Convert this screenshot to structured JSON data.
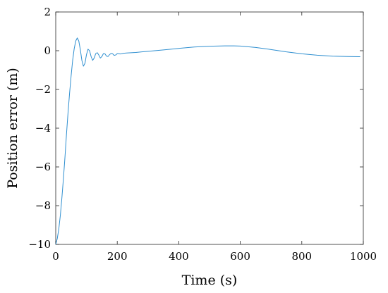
{
  "chart_data": {
    "type": "line",
    "title": "",
    "xlabel": "Time (s)",
    "ylabel": "Position error (m)",
    "xlim": [
      0,
      1000
    ],
    "ylim": [
      -10,
      2
    ],
    "xticks": [
      0,
      200,
      400,
      600,
      800,
      1000
    ],
    "yticks": [
      -10,
      -8,
      -6,
      -4,
      -2,
      0,
      2
    ],
    "grid": false,
    "series_color": "#2f8fd0",
    "series": [
      {
        "x": [
          0,
          5,
          10,
          15,
          20,
          25,
          30,
          35,
          40,
          45,
          50,
          55,
          60,
          65,
          70,
          75,
          80,
          85,
          90,
          95,
          100,
          105,
          110,
          115,
          120,
          125,
          130,
          135,
          140,
          145,
          150,
          155,
          160,
          165,
          170,
          175,
          180,
          185,
          190,
          195,
          200,
          210,
          220,
          230,
          240,
          250,
          260,
          280,
          300,
          350,
          400,
          450,
          500,
          550,
          580,
          600,
          650,
          700,
          750,
          800,
          850,
          900,
          950,
          990
        ],
        "y": [
          -10,
          -9.7,
          -9.2,
          -8.5,
          -7.6,
          -6.6,
          -5.5,
          -4.3,
          -3.2,
          -2.2,
          -1.3,
          -0.5,
          0.1,
          0.5,
          0.66,
          0.5,
          0.05,
          -0.5,
          -0.8,
          -0.65,
          -0.2,
          0.08,
          0.0,
          -0.3,
          -0.5,
          -0.38,
          -0.15,
          -0.1,
          -0.22,
          -0.38,
          -0.3,
          -0.15,
          -0.16,
          -0.28,
          -0.3,
          -0.2,
          -0.14,
          -0.16,
          -0.24,
          -0.22,
          -0.15,
          -0.17,
          -0.13,
          -0.12,
          -0.11,
          -0.1,
          -0.09,
          -0.06,
          -0.03,
          0.04,
          0.12,
          0.19,
          0.23,
          0.25,
          0.25,
          0.24,
          0.17,
          0.06,
          -0.06,
          -0.16,
          -0.23,
          -0.28,
          -0.3,
          -0.31
        ]
      }
    ]
  }
}
